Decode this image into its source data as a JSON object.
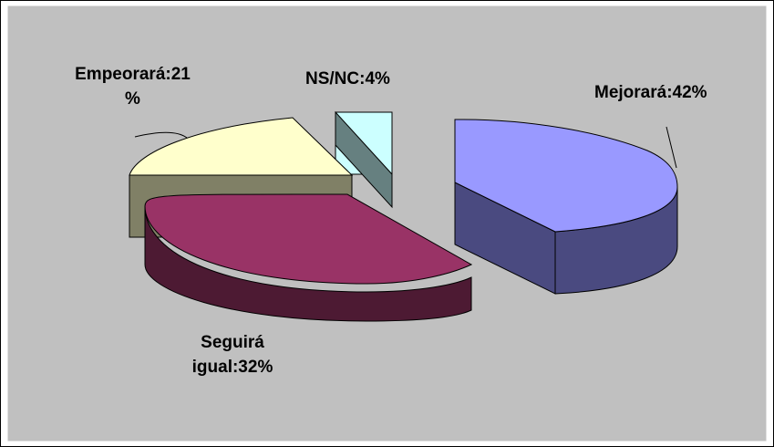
{
  "chart_data": {
    "type": "pie",
    "style": "3d-exploded",
    "title": "",
    "legend": "none",
    "slices": [
      {
        "name": "Mejorará",
        "value": 42,
        "label_line1": "Mejorará:42%",
        "label_line2": "",
        "top_color": "#9999ff",
        "side_color": "#4a4a80"
      },
      {
        "name": "Seguirá igual",
        "value": 32,
        "label_line1": "Seguirá",
        "label_line2": "igual:32%",
        "top_color": "#993366",
        "side_color": "#4d1a33"
      },
      {
        "name": "Empeorará",
        "value": 21,
        "label_line1": "Empeorará:21",
        "label_line2": "%",
        "top_color": "#ffffcc",
        "side_color": "#808066"
      },
      {
        "name": "NS/NC",
        "value": 4,
        "label_line1": "NS/NC:4%",
        "label_line2": "",
        "top_color": "#ccffff",
        "side_color": "#668080"
      }
    ]
  },
  "colors": {
    "background": "#ffffff",
    "plot_area": "#c0c0c0",
    "border": "#000000"
  }
}
